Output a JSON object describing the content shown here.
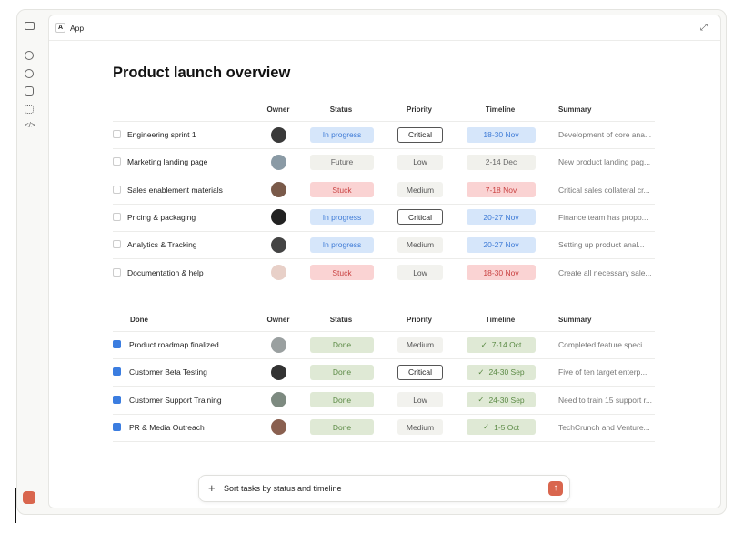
{
  "header": {
    "badge": "A",
    "title": "App"
  },
  "title": "Product launch overview",
  "tables": [
    {
      "columns": [
        "Owner",
        "Status",
        "Priority",
        "Timeline",
        "Summary"
      ],
      "rows": [
        {
          "name": "Engineering sprint 1",
          "status": "In progress",
          "priority": "Critical",
          "timeline": "18-30 Nov",
          "summary": "Development of core ana...",
          "checked": false
        },
        {
          "name": "Marketing landing page",
          "status": "Future",
          "priority": "Low",
          "timeline": "2-14 Dec",
          "summary": "New product landing pag...",
          "checked": false
        },
        {
          "name": "Sales enablement materials",
          "status": "Stuck",
          "priority": "Medium",
          "timeline": "7-18 Nov",
          "summary": "Critical sales collateral cr...",
          "checked": false
        },
        {
          "name": "Pricing & packaging",
          "status": "In progress",
          "priority": "Critical",
          "timeline": "20-27 Nov",
          "summary": "Finance team has propo...",
          "checked": false
        },
        {
          "name": "Analytics & Tracking",
          "status": "In progress",
          "priority": "Medium",
          "timeline": "20-27 Nov",
          "summary": "Setting up product anal...",
          "checked": false
        },
        {
          "name": "Documentation & help",
          "status": "Stuck",
          "priority": "Low",
          "timeline": "18-30 Nov",
          "summary": "Create all necessary sale...",
          "checked": false
        }
      ]
    },
    {
      "heading": "Done",
      "columns": [
        "Owner",
        "Status",
        "Priority",
        "Timeline",
        "Summary"
      ],
      "rows": [
        {
          "name": "Product roadmap finalized",
          "status": "Done",
          "priority": "Medium",
          "timeline": "7-14 Oct",
          "summary": "Completed feature speci...",
          "checked": true
        },
        {
          "name": "Customer Beta Testing",
          "status": "Done",
          "priority": "Critical",
          "timeline": "24-30 Sep",
          "summary": "Five of ten target enterp...",
          "checked": true
        },
        {
          "name": "Customer Support Training",
          "status": "Done",
          "priority": "Low",
          "timeline": "24-30 Sep",
          "summary": "Need to train 15 support r...",
          "checked": true
        },
        {
          "name": "PR & Media Outreach",
          "status": "Done",
          "priority": "Medium",
          "timeline": "1-5 Oct",
          "summary": "TechCrunch and Venture...",
          "checked": true
        }
      ]
    }
  ],
  "input": {
    "text": "Sort tasks by status and timeline"
  }
}
